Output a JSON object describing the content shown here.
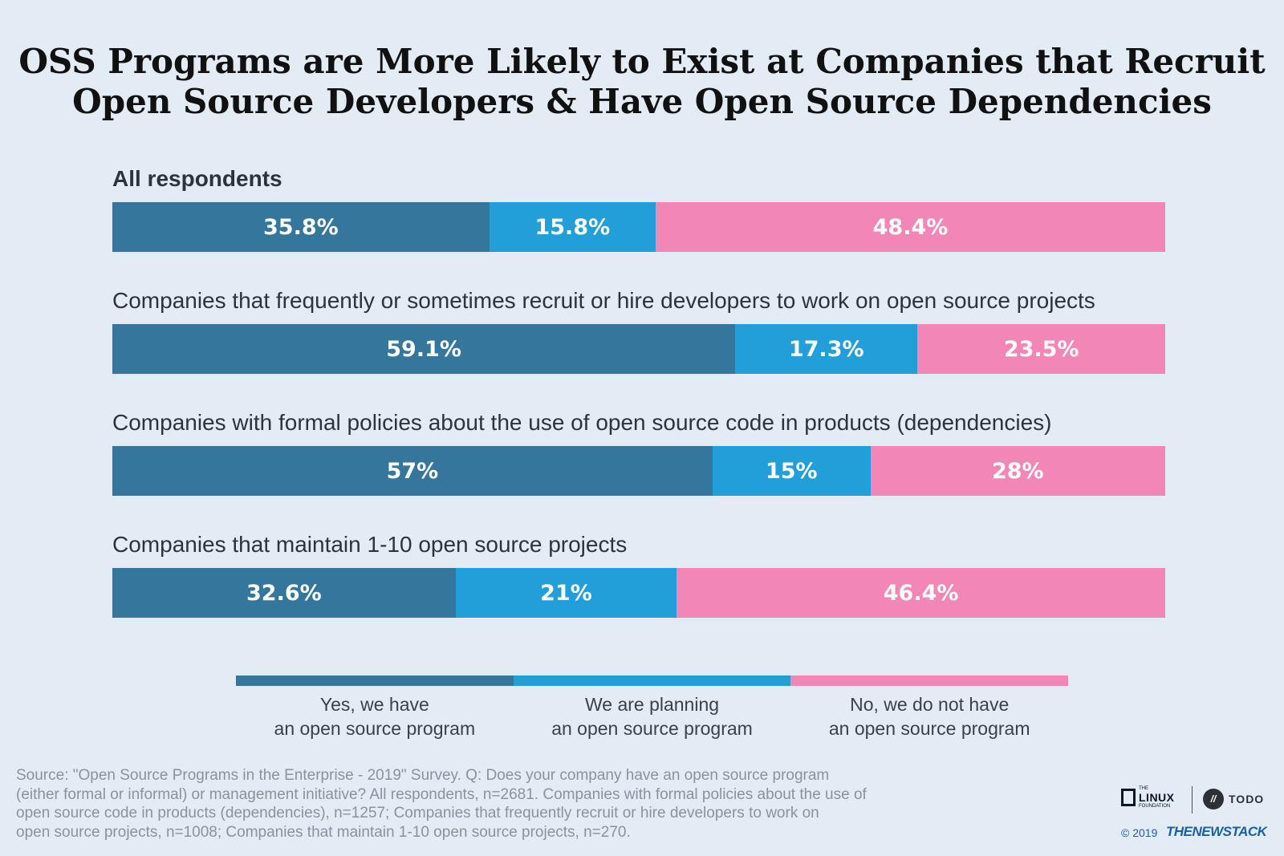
{
  "title_line1": "OSS Programs are More Likely to Exist at Companies that Recruit",
  "title_line2": "Open Source Developers & Have Open Source Dependencies",
  "colors": {
    "yes": "#34769c",
    "planning": "#229ed9",
    "no": "#f286b7"
  },
  "chart_data": {
    "type": "bar",
    "stacked": true,
    "orientation": "horizontal",
    "normalized": true,
    "categories": [
      "All respondents",
      "Companies that frequently or sometimes recruit or hire developers to work on open source projects",
      "Companies with formal policies about the use of open source code in products (dependencies)",
      "Companies that maintain 1-10 open source projects"
    ],
    "series": [
      {
        "name": "Yes, we have an open source program",
        "values": [
          35.8,
          59.1,
          57,
          32.6
        ],
        "labels": [
          "35.8%",
          "59.1%",
          "57%",
          "32.6%"
        ]
      },
      {
        "name": "We are planning an open source program",
        "values": [
          15.8,
          17.3,
          15,
          21
        ],
        "labels": [
          "15.8%",
          "17.3%",
          "15%",
          "21%"
        ]
      },
      {
        "name": "No, we do not have an open source program",
        "values": [
          48.4,
          23.5,
          28,
          46.4
        ],
        "labels": [
          "48.4%",
          "23.5%",
          "28%",
          "46.4%"
        ]
      }
    ],
    "legend_placement": "bottom",
    "grid": false
  },
  "legend": [
    {
      "text": "Yes, we have\nan open source program"
    },
    {
      "text": "We are planning\nan open source program"
    },
    {
      "text": "No, we do not have\nan open source program"
    }
  ],
  "source_lines": [
    "Source: \"Open Source Programs in the Enterprise - 2019\" Survey. Q: Does your company have an open source program",
    "(either formal or informal) or management initiative? All respondents, n=2681. Companies with formal policies about the use of",
    "open source code in products (dependencies), n=1257; Companies that frequently recruit or hire developers to work on",
    "open source projects, n=1008; Companies that maintain 1-10 open source projects, n=270."
  ],
  "logos": {
    "lf_the": "THE",
    "lf_linux": "LINUX",
    "lf_foundation": "FOUNDATION",
    "todo_mark": "//",
    "todo": "TODO",
    "copyright": "© 2019",
    "newstack": "THENEWSTACK"
  }
}
